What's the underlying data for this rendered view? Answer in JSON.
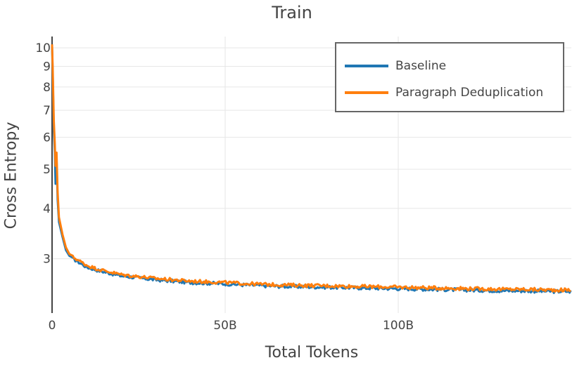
{
  "chart_data": {
    "type": "line",
    "title": "Train",
    "xlabel": "Total Tokens",
    "ylabel": "Cross Entropy",
    "x_ticks": [
      {
        "value": 0,
        "label": "0"
      },
      {
        "value": 50,
        "label": "50B"
      },
      {
        "value": 100,
        "label": "100B"
      }
    ],
    "y_ticks": [
      {
        "value": 3,
        "label": "3"
      },
      {
        "value": 4,
        "label": "4"
      },
      {
        "value": 5,
        "label": "5"
      },
      {
        "value": 6,
        "label": "6"
      },
      {
        "value": 7,
        "label": "7"
      },
      {
        "value": 8,
        "label": "8"
      },
      {
        "value": 9,
        "label": "9"
      },
      {
        "value": 10,
        "label": "10"
      }
    ],
    "x_unit": "billion tokens",
    "xlim": [
      0,
      150
    ],
    "ylim": [
      2.2,
      10.5
    ],
    "y_scale": "log",
    "grid": true,
    "legend_position": "top-right",
    "series": [
      {
        "name": "Baseline",
        "color": "#1f77b4",
        "x": [
          0,
          0.2,
          0.5,
          0.8,
          1.0,
          1.3,
          1.6,
          2.0,
          3,
          4,
          5,
          6,
          8,
          10,
          13,
          16,
          20,
          25,
          30,
          35,
          40,
          45,
          50,
          55,
          60,
          65,
          70,
          75,
          80,
          85,
          90,
          95,
          100,
          105,
          110,
          115,
          120,
          125,
          130,
          135,
          140,
          145,
          150
        ],
        "y": [
          10.1,
          8.5,
          6.2,
          5.5,
          4.6,
          5.3,
          4.2,
          3.7,
          3.4,
          3.15,
          3.05,
          3.0,
          2.93,
          2.86,
          2.81,
          2.77,
          2.72,
          2.69,
          2.66,
          2.64,
          2.62,
          2.61,
          2.6,
          2.585,
          2.575,
          2.565,
          2.56,
          2.555,
          2.55,
          2.545,
          2.54,
          2.535,
          2.53,
          2.525,
          2.52,
          2.515,
          2.51,
          2.505,
          2.5,
          2.5,
          2.495,
          2.49,
          2.49
        ]
      },
      {
        "name": "Paragraph Deduplication",
        "color": "#ff7f0e",
        "x": [
          0,
          0.2,
          0.5,
          0.8,
          1.0,
          1.3,
          1.6,
          2.0,
          3,
          4,
          5,
          6,
          8,
          10,
          13,
          16,
          20,
          25,
          30,
          35,
          40,
          45,
          50,
          55,
          60,
          65,
          70,
          75,
          80,
          85,
          90,
          95,
          100,
          105,
          110,
          115,
          120,
          125,
          130,
          135,
          140,
          145,
          150
        ],
        "y": [
          10.2,
          8.8,
          6.6,
          5.8,
          5.1,
          5.5,
          4.4,
          3.8,
          3.45,
          3.2,
          3.08,
          3.03,
          2.96,
          2.89,
          2.83,
          2.79,
          2.74,
          2.71,
          2.68,
          2.66,
          2.64,
          2.63,
          2.62,
          2.605,
          2.595,
          2.585,
          2.58,
          2.575,
          2.57,
          2.565,
          2.56,
          2.555,
          2.55,
          2.545,
          2.54,
          2.535,
          2.53,
          2.525,
          2.52,
          2.52,
          2.515,
          2.51,
          2.51
        ]
      }
    ]
  }
}
